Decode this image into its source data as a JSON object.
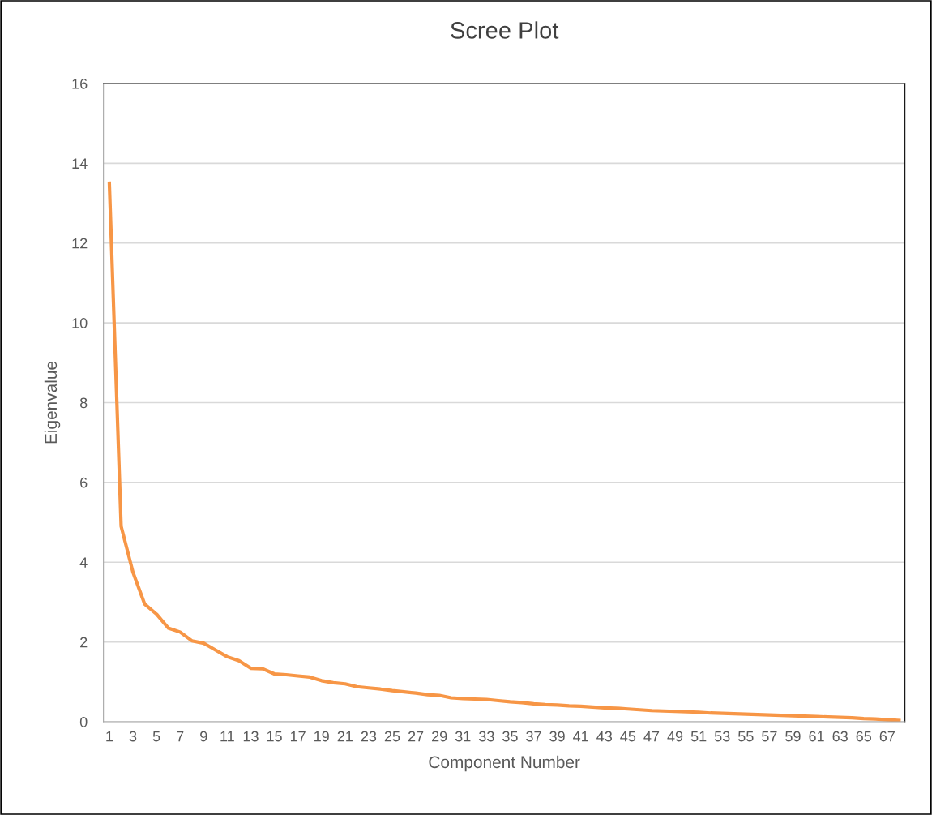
{
  "chart_data": {
    "type": "line",
    "title": "Scree Plot",
    "xlabel": "Component Number",
    "ylabel": "Eigenvalue",
    "categories": [
      "1",
      null,
      "3",
      null,
      "5",
      null,
      "7",
      null,
      "9",
      null,
      "11",
      null,
      "13",
      null,
      "15",
      null,
      "17",
      null,
      "19",
      null,
      "21",
      null,
      "23",
      null,
      "25",
      null,
      "27",
      null,
      "29",
      null,
      "31",
      null,
      "33",
      null,
      "35",
      null,
      "37",
      null,
      "39",
      null,
      "41",
      null,
      "43",
      null,
      "45",
      null,
      "47",
      null,
      "49",
      null,
      "51",
      null,
      "53",
      null,
      "55",
      null,
      "57",
      null,
      "59",
      null,
      "61",
      null,
      "63",
      null,
      "65",
      null,
      "67",
      null
    ],
    "series": [
      {
        "color": "#f79646",
        "values": [
          13.5,
          4.9,
          3.75,
          2.95,
          2.7,
          2.35,
          2.25,
          2.03,
          1.97,
          1.8,
          1.63,
          1.53,
          1.34,
          1.33,
          1.2,
          1.18,
          1.15,
          1.12,
          1.03,
          0.98,
          0.95,
          0.88,
          0.85,
          0.82,
          0.78,
          0.75,
          0.72,
          0.68,
          0.66,
          0.6,
          0.58,
          0.57,
          0.56,
          0.53,
          0.5,
          0.48,
          0.45,
          0.43,
          0.42,
          0.4,
          0.39,
          0.37,
          0.35,
          0.34,
          0.32,
          0.3,
          0.28,
          0.27,
          0.26,
          0.25,
          0.24,
          0.22,
          0.21,
          0.2,
          0.19,
          0.18,
          0.17,
          0.16,
          0.15,
          0.14,
          0.13,
          0.12,
          0.11,
          0.1,
          0.08,
          0.07,
          0.05,
          0.03
        ]
      }
    ],
    "ylim": [
      0,
      16
    ],
    "yticks": [
      0,
      2,
      4,
      6,
      8,
      10,
      12,
      14,
      16
    ],
    "grid": "y",
    "legend": false,
    "marker": "none",
    "line_style": "solid"
  }
}
